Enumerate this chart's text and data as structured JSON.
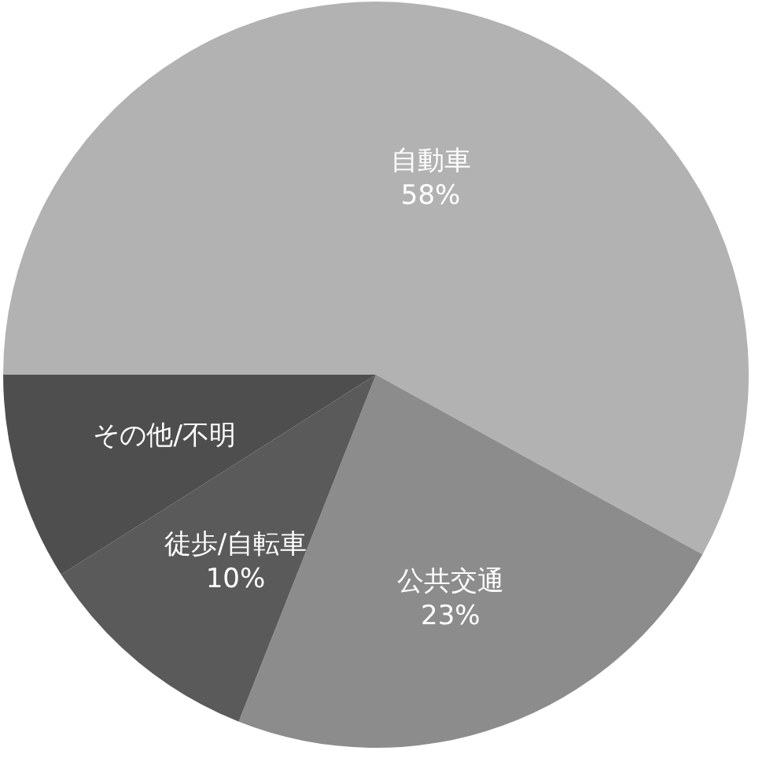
{
  "chart_data": {
    "type": "pie",
    "categories": [
      "自動車",
      "公共交通",
      "徒歩/自転車",
      "その他/不明"
    ],
    "values": [
      58,
      23,
      10,
      9
    ],
    "colors": [
      "#b2b2b2",
      "#8c8c8c",
      "#5a5a5a",
      "#4e4e4e"
    ],
    "value_labels": [
      "58%",
      "23%",
      "10%",
      null
    ]
  }
}
